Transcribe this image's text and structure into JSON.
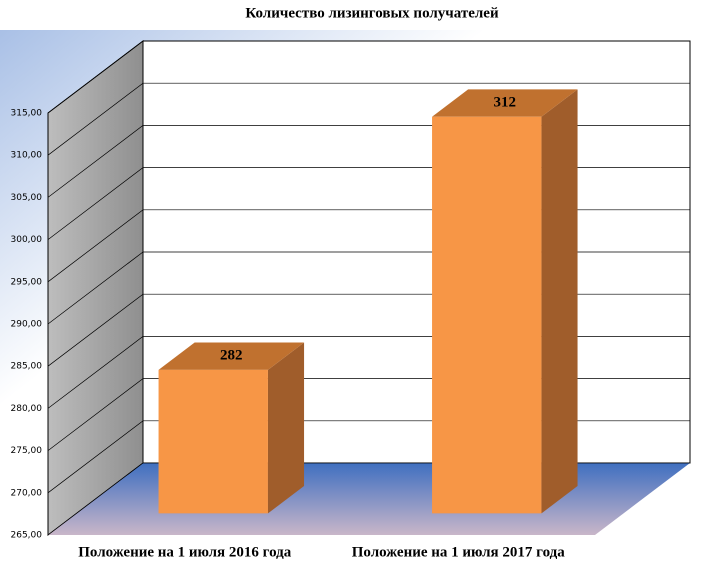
{
  "chart_data": {
    "type": "bar3d",
    "title": "Количество лизинговых получателей",
    "categories": [
      "Положение на 1 июля 2016 года",
      "Положение на 1 июля 2017 года"
    ],
    "values": [
      282,
      312
    ],
    "color": "#f79646",
    "ylim": [
      265,
      315
    ],
    "yticks": [
      {
        "value": 265,
        "label": "265,00"
      },
      {
        "value": 270,
        "label": "270,00"
      },
      {
        "value": 275,
        "label": "275,00"
      },
      {
        "value": 280,
        "label": "280,00"
      },
      {
        "value": 285,
        "label": "285,00"
      },
      {
        "value": 290,
        "label": "290,00"
      },
      {
        "value": 295,
        "label": "295,00"
      },
      {
        "value": 300,
        "label": "300,00"
      },
      {
        "value": 305,
        "label": "305,00"
      },
      {
        "value": 310,
        "label": "310,00"
      },
      {
        "value": 315,
        "label": "315,00"
      }
    ],
    "grid": true
  }
}
